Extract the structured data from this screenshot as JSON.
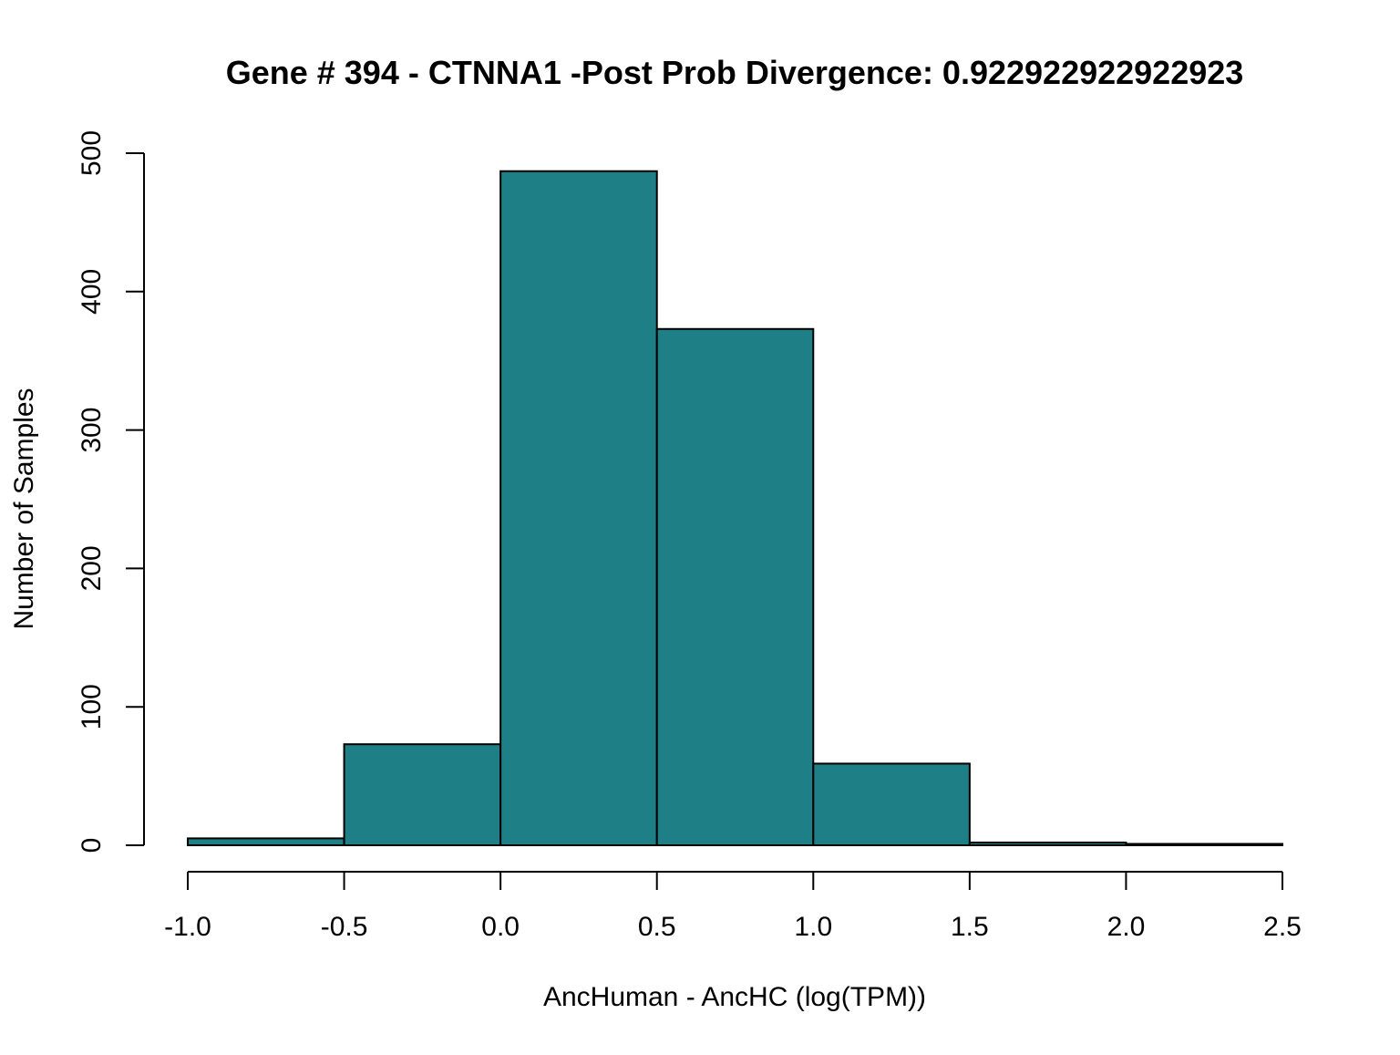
{
  "chart_data": {
    "type": "bar",
    "title": "Gene # 394 - CTNNA1 -Post Prob Divergence: 0.922922922922923",
    "xlabel": "AncHuman - AncHC (log(TPM))",
    "ylabel": "Number of Samples",
    "bar_color": "#1f7f87",
    "bins": [
      {
        "x0": -1.0,
        "x1": -0.5,
        "count": 5
      },
      {
        "x0": -0.5,
        "x1": 0.0,
        "count": 73
      },
      {
        "x0": 0.0,
        "x1": 0.5,
        "count": 487
      },
      {
        "x0": 0.5,
        "x1": 1.0,
        "count": 373
      },
      {
        "x0": 1.0,
        "x1": 1.5,
        "count": 59
      },
      {
        "x0": 1.5,
        "x1": 2.0,
        "count": 2
      },
      {
        "x0": 2.0,
        "x1": 2.5,
        "count": 1
      }
    ],
    "xlim": [
      -1.0,
      2.5
    ],
    "ylim": [
      0,
      500
    ],
    "x_ticks": [
      -1.0,
      -0.5,
      0.0,
      0.5,
      1.0,
      1.5,
      2.0,
      2.5
    ],
    "x_tick_labels": [
      "-1.0",
      "-0.5",
      "0.0",
      "0.5",
      "1.0",
      "1.5",
      "2.0",
      "2.5"
    ],
    "y_ticks": [
      0,
      100,
      200,
      300,
      400,
      500
    ],
    "y_tick_labels": [
      "0",
      "100",
      "200",
      "300",
      "400",
      "500"
    ],
    "grid": false,
    "legend": "none"
  }
}
